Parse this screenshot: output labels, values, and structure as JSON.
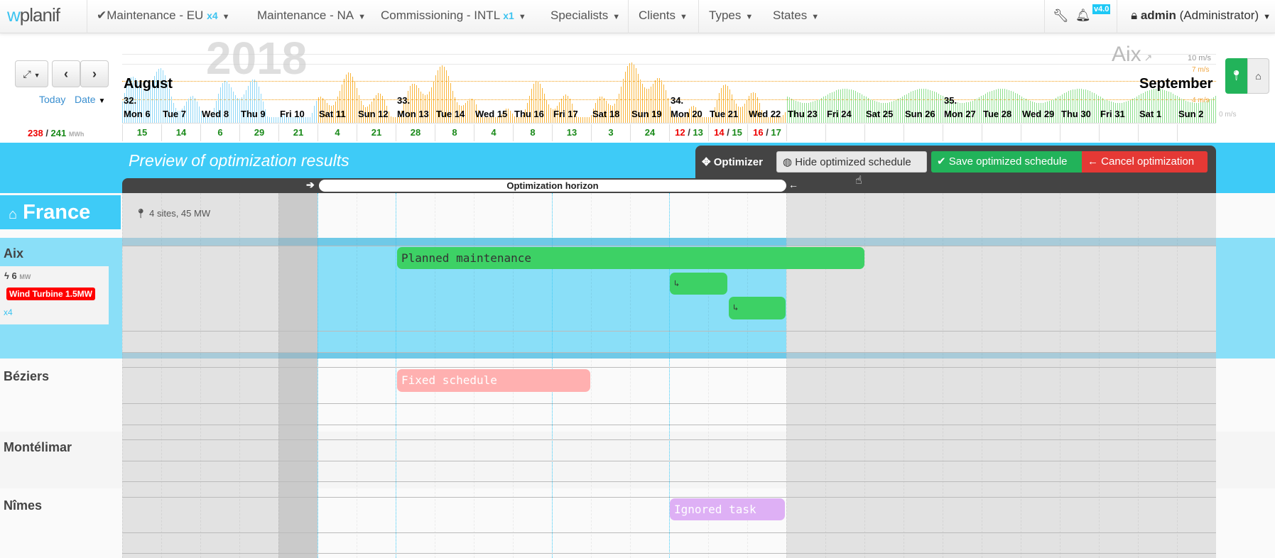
{
  "nav": {
    "logo": "wplanif",
    "items": [
      {
        "label": "Maintenance - EU",
        "badge": "x4",
        "checked": true
      },
      {
        "label": "Maintenance - NA",
        "badge": ""
      },
      {
        "label": "Commissioning - INTL",
        "badge": "x1"
      },
      {
        "label": "Specialists",
        "badge": ""
      },
      {
        "label": "Clients",
        "badge": ""
      },
      {
        "label": "Types",
        "badge": ""
      },
      {
        "label": "States",
        "badge": ""
      }
    ],
    "version": "v4.0",
    "user": "admin",
    "role": "(Administrator)"
  },
  "controls": {
    "today": "Today",
    "date": "Date",
    "energy_done": "238",
    "energy_total": "241",
    "energy_unit": "MWh"
  },
  "timeline": {
    "year": "2018",
    "months": [
      "August",
      "September"
    ],
    "site": "Aix",
    "scale": [
      "10 m/s",
      "7 m/s",
      "4 m/s",
      "0 m/s"
    ],
    "weeks": [
      {
        "label": "32.",
        "day": 0
      },
      {
        "label": "33.",
        "day": 7
      },
      {
        "label": "34.",
        "day": 14
      },
      {
        "label": "35.",
        "day": 21
      }
    ],
    "days": [
      "Mon 6",
      "Tue 7",
      "Wed 8",
      "Thu 9",
      "Fri 10",
      "Sat 11",
      "Sun 12",
      "Mon 13",
      "Tue 14",
      "Wed 15",
      "Thu 16",
      "Fri 17",
      "Sat 18",
      "Sun 19",
      "Mon 20",
      "Tue 21",
      "Wed 22",
      "Thu 23",
      "Fri 24",
      "Sat 25",
      "Sun 26",
      "Mon 27",
      "Tue 28",
      "Wed 29",
      "Thu 30",
      "Fri 31",
      "Sat 1",
      "Sun 2"
    ],
    "counts": [
      {
        "a": "15"
      },
      {
        "a": "14"
      },
      {
        "a": "6"
      },
      {
        "a": "29"
      },
      {
        "a": "21"
      },
      {
        "a": "4"
      },
      {
        "a": "21"
      },
      {
        "a": "28"
      },
      {
        "a": "8"
      },
      {
        "a": "4"
      },
      {
        "a": "8"
      },
      {
        "a": "13"
      },
      {
        "a": "3"
      },
      {
        "a": "24"
      },
      {
        "r": "12",
        "a": "13"
      },
      {
        "r": "14",
        "a": "15"
      },
      {
        "r": "16",
        "a": "17"
      }
    ]
  },
  "optimizer": {
    "title": "Preview of optimization results",
    "label": "Optimizer",
    "hide": "Hide optimized schedule",
    "save": "Save optimized schedule",
    "cancel": "Cancel optimization",
    "horizon": "Optimization horizon"
  },
  "region": {
    "name": "France",
    "summary": "4 sites, 45 MW"
  },
  "sites": [
    {
      "name": "Aix",
      "power": "6",
      "unit": "MW",
      "asset": "Wind Turbine 1.5MW",
      "count": "x4"
    },
    {
      "name": "Béziers"
    },
    {
      "name": "Montélimar"
    },
    {
      "name": "Nîmes"
    }
  ],
  "tasks": [
    {
      "label": "Planned maintenance",
      "site": "Aix",
      "lane": 0,
      "start": "Mon 13",
      "end": "Fri 24",
      "color": "#3dd165"
    },
    {
      "label": "↳",
      "site": "Aix",
      "lane": 1,
      "start": "Mon 20",
      "end": "Tue 21 (mid)",
      "color": "#3dd165"
    },
    {
      "label": "↳",
      "site": "Aix",
      "lane": 2,
      "start": "Tue 21 (mid)",
      "end": "Wed 22",
      "color": "#3dd165"
    },
    {
      "label": "Fixed schedule",
      "site": "Béziers",
      "start": "Mon 13",
      "end": "Fri 17",
      "color": "#ffb0b0"
    },
    {
      "label": "Ignored task",
      "site": "Nîmes",
      "start": "Mon 20",
      "end": "Wed 22",
      "color": "#deb0f5"
    }
  ],
  "colors": {
    "accent": "#3ecbf7",
    "save": "#22b35a",
    "cancel": "#e53935",
    "past_wind": "#8fd8f7",
    "forecast_wind": "#f9b53b",
    "late_wind": "#8ee08e"
  }
}
